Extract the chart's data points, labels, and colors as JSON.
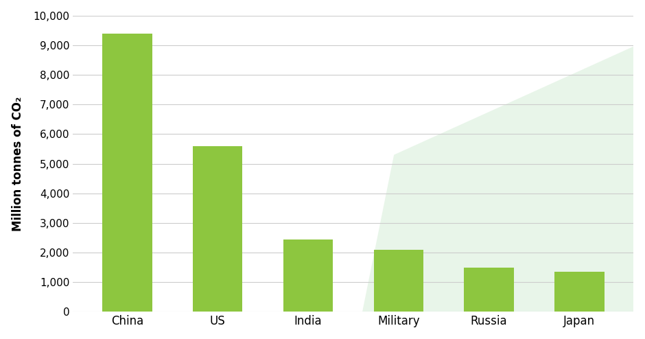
{
  "categories": [
    "China",
    "US",
    "India",
    "Military",
    "Russia",
    "Japan"
  ],
  "values": [
    9400,
    5600,
    2450,
    2100,
    1500,
    1350
  ],
  "bar_color": "#8DC63F",
  "ylabel": "Million tonnes of CO₂",
  "ylim": [
    0,
    10000
  ],
  "yticks": [
    0,
    1000,
    2000,
    3000,
    4000,
    5000,
    6000,
    7000,
    8000,
    9000,
    10000
  ],
  "background_color": "#ffffff",
  "grid_color": "#cccccc",
  "diagonal_shade_color": "#e8f5e9",
  "bar_width": 0.55
}
